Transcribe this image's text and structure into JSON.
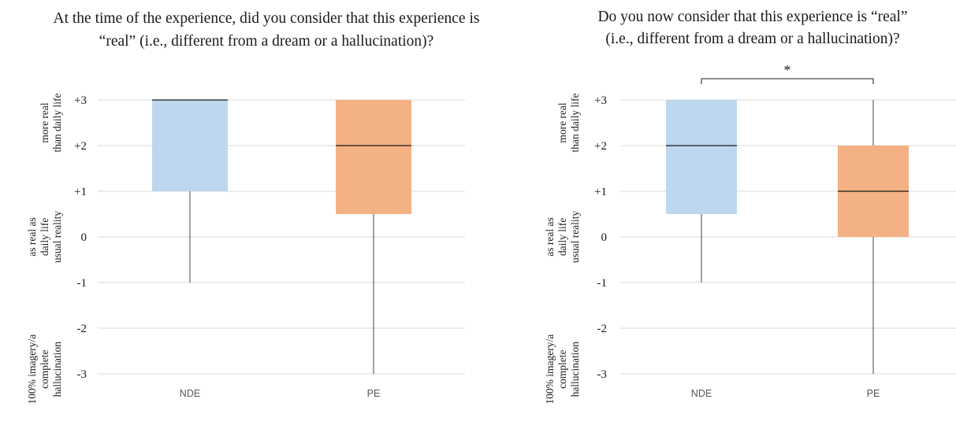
{
  "chart_data": [
    {
      "type": "box",
      "title": [
        "At the time of the experience, did you consider that this experience is",
        "“real” (i.e., different from a dream or a hallucination)?"
      ],
      "categories": [
        "NDE",
        "PE"
      ],
      "yticks": [
        "-3",
        "-2",
        "-1",
        "0",
        "+1",
        "+2",
        "+3"
      ],
      "ylim": [
        -3,
        3
      ],
      "grid": true,
      "band_labels": [
        {
          "lines": [
            "more real",
            "than daily life"
          ],
          "at": 2.5
        },
        {
          "lines": [
            "as real as",
            "daily life",
            "usual reality"
          ],
          "at": 0
        },
        {
          "lines": [
            "100% imagery/a",
            "complete",
            "hallucination"
          ],
          "at": -2.9
        }
      ],
      "boxes": [
        {
          "category": "NDE",
          "min": -1,
          "q1": 1,
          "median": 3,
          "q3": 3,
          "max": 3,
          "color": "#bdd7ee"
        },
        {
          "category": "PE",
          "min": -3,
          "q1": 0.5,
          "median": 2,
          "q3": 3,
          "max": 3,
          "color": "#f4b183"
        }
      ],
      "significance": null
    },
    {
      "type": "box",
      "title": [
        "Do you now consider that this experience is “real”",
        "(i.e., different from a dream or a hallucination)?"
      ],
      "categories": [
        "NDE",
        "PE"
      ],
      "yticks": [
        "-3",
        "-2",
        "-1",
        "0",
        "+1",
        "+2",
        "+3"
      ],
      "ylim": [
        -3,
        3
      ],
      "grid": true,
      "band_labels": [
        {
          "lines": [
            "more real",
            "than daily life"
          ],
          "at": 2.5
        },
        {
          "lines": [
            "as real as",
            "daily life",
            "usual reality"
          ],
          "at": 0
        },
        {
          "lines": [
            "100% imagery/a",
            "complete",
            "hallucination"
          ],
          "at": -2.9
        }
      ],
      "boxes": [
        {
          "category": "NDE",
          "min": -1,
          "q1": 0.5,
          "median": 2,
          "q3": 3,
          "max": 3,
          "color": "#bdd7ee"
        },
        {
          "category": "PE",
          "min": -3,
          "q1": 0,
          "median": 1,
          "q3": 2,
          "max": 3,
          "color": "#f4b183"
        }
      ],
      "significance": {
        "from": "NDE",
        "to": "PE",
        "label": "*"
      }
    }
  ]
}
